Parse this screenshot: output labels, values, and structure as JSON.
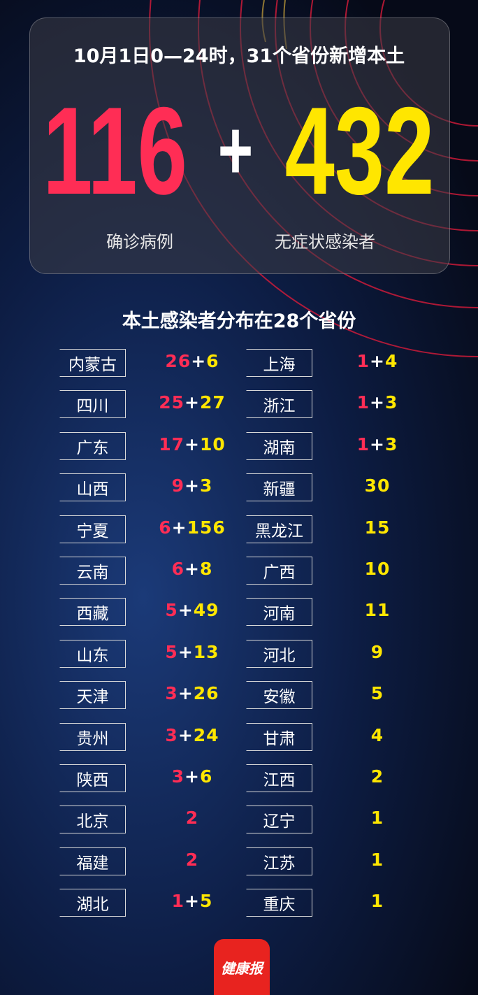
{
  "header": {
    "title": "10月1日0—24时，31个省份新增本土",
    "confirmed": "116",
    "plus": "+",
    "asymptomatic": "432",
    "confirmed_label": "确诊病例",
    "asymptomatic_label": "无症状感染者"
  },
  "section_title": "本土感染者分布在28个省份",
  "left": [
    {
      "province": "内蒙古",
      "confirmed": 26,
      "asymptomatic": 6
    },
    {
      "province": "四川",
      "confirmed": 25,
      "asymptomatic": 27
    },
    {
      "province": "广东",
      "confirmed": 17,
      "asymptomatic": 10
    },
    {
      "province": "山西",
      "confirmed": 9,
      "asymptomatic": 3
    },
    {
      "province": "宁夏",
      "confirmed": 6,
      "asymptomatic": 156
    },
    {
      "province": "云南",
      "confirmed": 6,
      "asymptomatic": 8
    },
    {
      "province": "西藏",
      "confirmed": 5,
      "asymptomatic": 49
    },
    {
      "province": "山东",
      "confirmed": 5,
      "asymptomatic": 13
    },
    {
      "province": "天津",
      "confirmed": 3,
      "asymptomatic": 26
    },
    {
      "province": "贵州",
      "confirmed": 3,
      "asymptomatic": 24
    },
    {
      "province": "陕西",
      "confirmed": 3,
      "asymptomatic": 6
    },
    {
      "province": "北京",
      "confirmed": 2
    },
    {
      "province": "福建",
      "confirmed": 2
    },
    {
      "province": "湖北",
      "confirmed": 1,
      "asymptomatic": 5
    }
  ],
  "right": [
    {
      "province": "上海",
      "confirmed": 1,
      "asymptomatic": 4
    },
    {
      "province": "浙江",
      "confirmed": 1,
      "asymptomatic": 3
    },
    {
      "province": "湖南",
      "confirmed": 1,
      "asymptomatic": 3
    },
    {
      "province": "新疆",
      "asymptomatic": 30
    },
    {
      "province": "黑龙江",
      "asymptomatic": 15
    },
    {
      "province": "广西",
      "asymptomatic": 10
    },
    {
      "province": "河南",
      "asymptomatic": 11
    },
    {
      "province": "河北",
      "asymptomatic": 9
    },
    {
      "province": "安徽",
      "asymptomatic": 5
    },
    {
      "province": "甘肃",
      "asymptomatic": 4
    },
    {
      "province": "江西",
      "asymptomatic": 2
    },
    {
      "province": "辽宁",
      "asymptomatic": 1
    },
    {
      "province": "江苏",
      "asymptomatic": 1
    },
    {
      "province": "重庆",
      "asymptomatic": 1
    }
  ],
  "logo": "健康报"
}
